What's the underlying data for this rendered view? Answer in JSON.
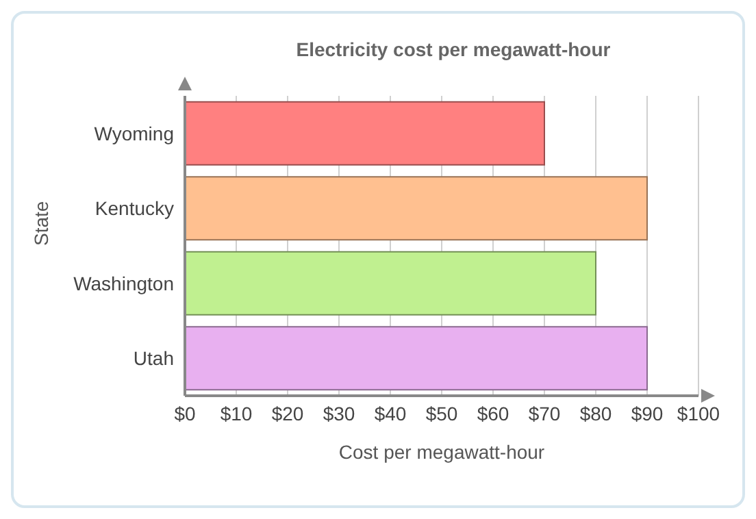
{
  "chart_data": {
    "type": "bar",
    "orientation": "horizontal",
    "title": "Electricity cost per megawatt-hour",
    "xlabel": "Cost per megawatt-hour",
    "ylabel": "State",
    "categories": [
      "Wyoming",
      "Kentucky",
      "Washington",
      "Utah"
    ],
    "values": [
      70,
      90,
      80,
      90
    ],
    "colors": [
      "#ff8080",
      "#ffc090",
      "#c0f090",
      "#e8b0f0"
    ],
    "xlim": [
      0,
      100
    ],
    "xticks": [
      {
        "value": 0,
        "label": "$0"
      },
      {
        "value": 10,
        "label": "$10"
      },
      {
        "value": 20,
        "label": "$20"
      },
      {
        "value": 30,
        "label": "$30"
      },
      {
        "value": 40,
        "label": "$40"
      },
      {
        "value": 50,
        "label": "$50"
      },
      {
        "value": 60,
        "label": "$60"
      },
      {
        "value": 70,
        "label": "$70"
      },
      {
        "value": 80,
        "label": "$80"
      },
      {
        "value": 90,
        "label": "$90"
      },
      {
        "value": 100,
        "label": "$100"
      }
    ],
    "grid": "x"
  }
}
